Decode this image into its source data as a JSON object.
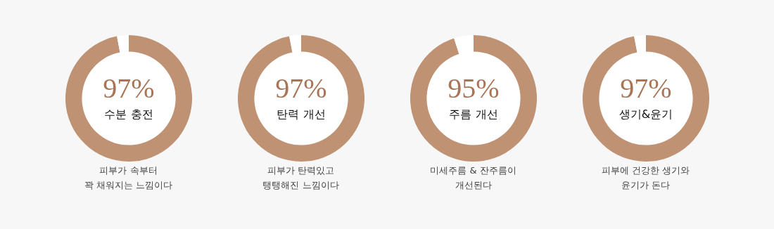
{
  "chart_data": [
    {
      "type": "donut",
      "title": "수분 충전",
      "categories": [
        null,
        null
      ],
      "values": [
        97,
        3
      ],
      "colors": [
        "#c09274",
        "#ffffff"
      ],
      "value_labels": [
        "97%",
        null
      ],
      "legend": false,
      "annotations": [
        "피부가 속부터\n꽉 채워지는 느낌이다"
      ]
    },
    {
      "type": "donut",
      "title": "탄력 개선",
      "categories": [
        null,
        null
      ],
      "values": [
        97,
        3
      ],
      "colors": [
        "#c09274",
        "#ffffff"
      ],
      "value_labels": [
        "97%",
        null
      ],
      "legend": false,
      "annotations": [
        "피부가 탄력있고\n탱탱해진 느낌이다"
      ]
    },
    {
      "type": "donut",
      "title": "주름 개선",
      "categories": [
        null,
        null
      ],
      "values": [
        95,
        5
      ],
      "colors": [
        "#c09274",
        "#ffffff"
      ],
      "value_labels": [
        "95%",
        null
      ],
      "legend": false,
      "annotations": [
        "미세주름 & 잔주름이\n개선된다"
      ]
    },
    {
      "type": "donut",
      "title": "생기&윤기",
      "categories": [
        null,
        null
      ],
      "values": [
        97,
        3
      ],
      "colors": [
        "#c09274",
        "#ffffff"
      ],
      "value_labels": [
        "97%",
        null
      ],
      "legend": false,
      "annotations": [
        "피부에 건강한 생기와\n윤기가 돈다"
      ]
    }
  ]
}
